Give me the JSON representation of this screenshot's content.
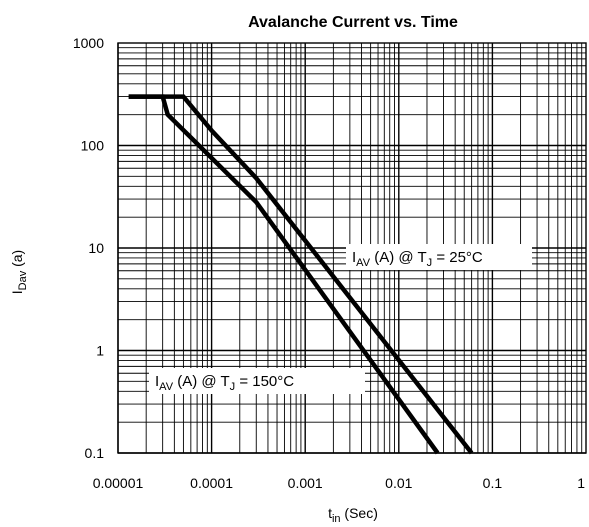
{
  "chart_data": {
    "type": "line",
    "title": "Avalanche Current vs. Time",
    "xlabel": {
      "main": "t",
      "sub": "in",
      "unit": "(Sec)"
    },
    "ylabel": {
      "main": "I",
      "sub": "Dav",
      "unit": "(a)"
    },
    "x_scale": "log",
    "y_scale": "log",
    "xlim": [
      1e-05,
      1
    ],
    "ylim": [
      0.1,
      1000
    ],
    "grid": true,
    "x_ticks": [
      {
        "value": 1e-05,
        "label": "0.00001"
      },
      {
        "value": 0.0001,
        "label": "0.0001"
      },
      {
        "value": 0.001,
        "label": "0.001"
      },
      {
        "value": 0.01,
        "label": "0.01"
      },
      {
        "value": 0.1,
        "label": "0.1"
      },
      {
        "value": 1,
        "label": "1"
      }
    ],
    "y_ticks": [
      {
        "value": 0.1,
        "label": "0.1"
      },
      {
        "value": 1,
        "label": "1"
      },
      {
        "value": 10,
        "label": "10"
      },
      {
        "value": 100,
        "label": "100"
      },
      {
        "value": 1000,
        "label": "1000"
      }
    ],
    "series": [
      {
        "label": {
          "main": "I",
          "sub": "AV",
          "mid": " (A) @ T",
          "sub2": "J",
          "tail": " = 25°C"
        },
        "color": "#000000",
        "points": [
          [
            1.3e-05,
            300
          ],
          [
            5e-05,
            300
          ],
          [
            0.0001,
            140
          ],
          [
            0.0003,
            48
          ],
          [
            0.06,
            0.1
          ]
        ]
      },
      {
        "label": {
          "main": "I",
          "sub": "AV",
          "mid": " (A) @ T",
          "sub2": "J",
          "tail": " = 150°C"
        },
        "color": "#000000",
        "points": [
          [
            1.3e-05,
            300
          ],
          [
            3e-05,
            300
          ],
          [
            3.4e-05,
            200
          ],
          [
            0.0003,
            28
          ],
          [
            0.026,
            0.1
          ]
        ]
      }
    ]
  }
}
